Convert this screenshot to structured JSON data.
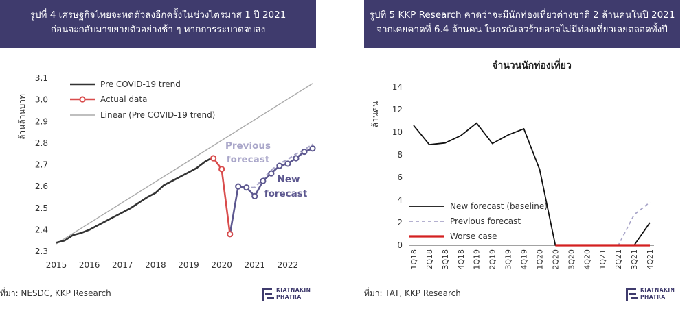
{
  "left_panel": {
    "title_line1": "รูปที่ 4 เศรษฐกิจไทยจะหดตัวลงอีกครั้งในช่วงไตรมาส 1 ปี 2021",
    "title_line2": "ก่อนจะกลับมาขยายตัวอย่างช้า ๆ หากการระบาดจบลง",
    "source": "ที่มา: NESDC, KKP Research",
    "logo_text": [
      "KIATNAKIN",
      "PHATRA"
    ]
  },
  "right_panel": {
    "title_line1": "รูปที่ 5  KKP Research คาดว่าจะมีนักท่องเที่ยวต่างชาติ 2 ล้านคนในปี 2021",
    "title_line2": "จากเคยคาดที่ 6.4 ล้านคน ในกรณีเลวร้ายอาจไม่มีท่องเที่ยวเลยตลอดทั้งปี",
    "source": "ที่มา: TAT, KKP Research",
    "logo_text": [
      "KIATNAKIN",
      "PHATRA"
    ]
  },
  "colors": {
    "banner": "#3f3b6d",
    "trend": "#333333",
    "actual": "#d94c4c",
    "linear": "#aaaaaa",
    "new_forecast": "#5c578f",
    "previous_forecast": "#a9a6c9",
    "worse_case": "#d42020"
  },
  "chart_data": [
    {
      "type": "line",
      "ylabel": "ล้านล้านบาท",
      "ylim": [
        2.3,
        3.1
      ],
      "yticks": [
        "2.3",
        "2.4",
        "2.5",
        "2.6",
        "2.7",
        "2.8",
        "2.9",
        "3.0",
        "3.1"
      ],
      "xticks": [
        "2015",
        "2016",
        "2017",
        "2018",
        "2019",
        "2020",
        "2021",
        "2022"
      ],
      "xlim": [
        2015.0,
        2022.75
      ],
      "legend": [
        "Pre COVID-19 trend",
        "Actual data",
        "Linear (Pre COVID-19 trend)"
      ],
      "legend_position": "top-left",
      "annotations": {
        "previous": [
          "Previous",
          "forecast"
        ],
        "new": [
          "New",
          "forecast"
        ]
      },
      "series": [
        {
          "name": "Pre COVID-19 trend",
          "x": [
            2015.0,
            2015.25,
            2015.5,
            2015.75,
            2016.0,
            2016.25,
            2016.5,
            2016.75,
            2017.0,
            2017.25,
            2017.5,
            2017.75,
            2018.0,
            2018.25,
            2018.5,
            2018.75,
            2019.0,
            2019.25,
            2019.5,
            2019.75
          ],
          "y": [
            2.34,
            2.35,
            2.375,
            2.385,
            2.4,
            2.42,
            2.44,
            2.46,
            2.48,
            2.5,
            2.525,
            2.55,
            2.57,
            2.605,
            2.625,
            2.645,
            2.665,
            2.685,
            2.715,
            2.735
          ]
        },
        {
          "name": "Actual data",
          "x": [
            2019.75,
            2020.0,
            2020.25
          ],
          "y": [
            2.73,
            2.68,
            2.38
          ]
        },
        {
          "name": "Linear (Pre COVID-19 trend)",
          "x": [
            2015.0,
            2022.75
          ],
          "y": [
            2.335,
            3.075
          ]
        },
        {
          "name": "New forecast",
          "x": [
            2020.25,
            2020.5,
            2020.75,
            2021.0,
            2021.25,
            2021.5,
            2021.75,
            2022.0,
            2022.25,
            2022.5,
            2022.75
          ],
          "y": [
            2.38,
            2.6,
            2.595,
            2.555,
            2.625,
            2.66,
            2.695,
            2.705,
            2.73,
            2.76,
            2.775
          ]
        },
        {
          "name": "Previous forecast",
          "x": [
            2020.25,
            2020.5,
            2020.75,
            2021.0,
            2021.25,
            2021.5,
            2021.75,
            2022.0,
            2022.25,
            2022.5,
            2022.75
          ],
          "y": [
            2.38,
            2.6,
            2.595,
            2.595,
            2.635,
            2.675,
            2.705,
            2.725,
            2.75,
            2.77,
            2.795
          ]
        }
      ]
    },
    {
      "type": "line",
      "title": "จำนวนนักท่องเที่ยว",
      "ylabel": "ล้านคน",
      "ylim": [
        0,
        14
      ],
      "yticks": [
        "0",
        "2",
        "4",
        "6",
        "8",
        "10",
        "12",
        "14"
      ],
      "categories": [
        "1Q18",
        "2Q18",
        "3Q18",
        "4Q18",
        "1Q19",
        "2Q19",
        "3Q19",
        "4Q19",
        "1Q20",
        "2Q20",
        "3Q20",
        "4Q20",
        "1Q21",
        "2Q21",
        "3Q21",
        "4Q21"
      ],
      "legend": [
        "New forecast (baseline)",
        "Previous forecast",
        "Worse case"
      ],
      "legend_position": "bottom-left",
      "series": [
        {
          "name": "New forecast (baseline)",
          "values": [
            10.6,
            8.9,
            9.05,
            9.7,
            10.8,
            9.0,
            9.75,
            10.3,
            6.7,
            0,
            0,
            0,
            0,
            0,
            0,
            2.0
          ]
        },
        {
          "name": "Previous forecast",
          "values": [
            null,
            null,
            null,
            null,
            null,
            null,
            null,
            null,
            null,
            0,
            0,
            0,
            0,
            0,
            2.7,
            3.8
          ]
        },
        {
          "name": "Worse case",
          "values": [
            null,
            null,
            null,
            null,
            null,
            null,
            null,
            null,
            null,
            0,
            0,
            0,
            0,
            0,
            0,
            0
          ]
        }
      ]
    }
  ]
}
